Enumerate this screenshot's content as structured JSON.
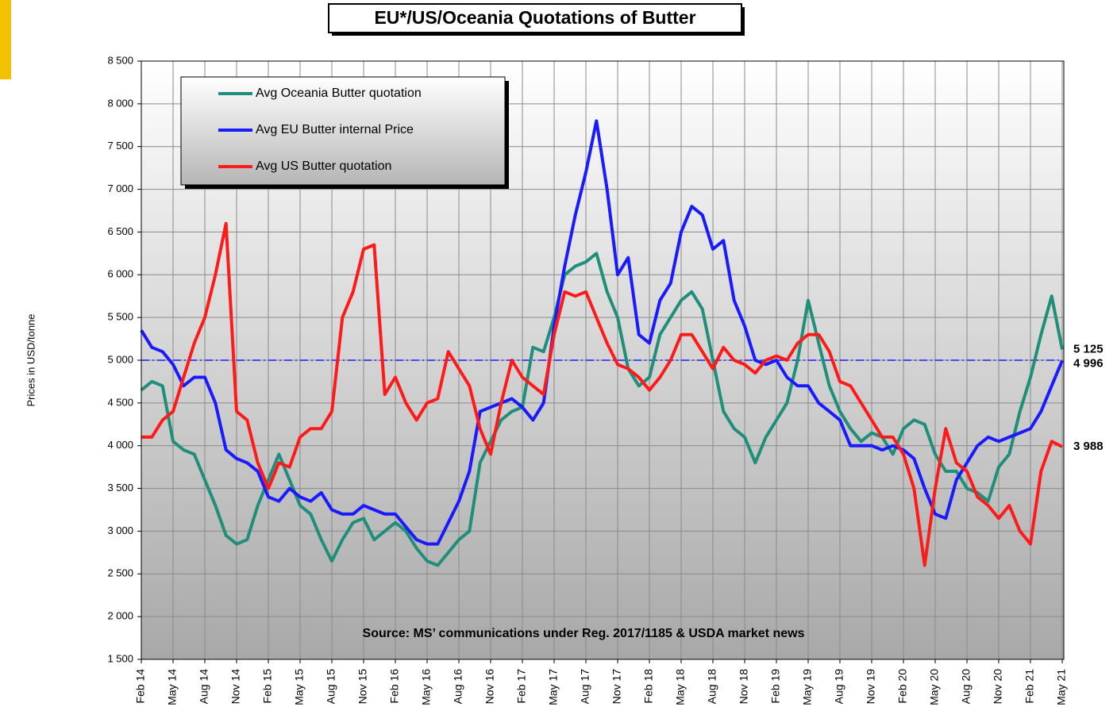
{
  "chart_data": {
    "type": "line",
    "title": "EU*/US/Oceania Quotations of Butter",
    "y_label": "Prices in USD/tonne",
    "annotation": "Source: MS’ communications under Reg. 2017/1185  & USDA market news",
    "reference_line": 5000,
    "grid": true,
    "legend": "upper left",
    "categories": [
      "Feb 14",
      null,
      null,
      "May 14",
      null,
      null,
      "Aug 14",
      null,
      null,
      "Nov 14",
      null,
      null,
      "Feb 15",
      null,
      null,
      "May 15",
      null,
      null,
      "Aug 15",
      null,
      null,
      "Nov 15",
      null,
      null,
      "Feb 16",
      null,
      null,
      "May 16",
      null,
      null,
      "Aug 16",
      null,
      null,
      "Nov 16",
      null,
      null,
      "Feb 17",
      null,
      null,
      "May 17",
      null,
      null,
      "Aug 17",
      null,
      null,
      "Nov 17",
      null,
      null,
      "Feb 18",
      null,
      null,
      "May 18",
      null,
      null,
      "Aug 18",
      null,
      null,
      "Nov 18",
      null,
      null,
      "Feb 19",
      null,
      null,
      "May 19",
      null,
      null,
      "Aug 19",
      null,
      null,
      "Nov 19",
      null,
      null,
      "Feb 20",
      null,
      null,
      "May 20",
      null,
      null,
      "Aug 20",
      null,
      null,
      "Nov 20",
      null,
      null,
      "Feb 21",
      null,
      null,
      "May 21"
    ],
    "ylim": [
      1500,
      8500
    ],
    "yticks": [
      {
        "value": 1500,
        "label": "1 500"
      },
      {
        "value": 2000,
        "label": "2 000"
      },
      {
        "value": 2500,
        "label": "2 500"
      },
      {
        "value": 3000,
        "label": "3 000"
      },
      {
        "value": 3500,
        "label": "3 500"
      },
      {
        "value": 4000,
        "label": "4 000"
      },
      {
        "value": 4500,
        "label": "4 500"
      },
      {
        "value": 5000,
        "label": "5 000"
      },
      {
        "value": 5500,
        "label": "5 500"
      },
      {
        "value": 6000,
        "label": "6 000"
      },
      {
        "value": 6500,
        "label": "6 500"
      },
      {
        "value": 7000,
        "label": "7 000"
      },
      {
        "value": 7500,
        "label": "7 500"
      },
      {
        "value": 8000,
        "label": "8 000"
      },
      {
        "value": 8500,
        "label": "8 500"
      }
    ],
    "series": [
      {
        "name": "Avg Oceania Butter quotation",
        "color": "#1f8f7a",
        "values": [
          4650,
          4750,
          4700,
          4050,
          3950,
          3900,
          3600,
          3300,
          2950,
          2850,
          2900,
          3300,
          3600,
          3900,
          3600,
          3300,
          3200,
          2900,
          2650,
          2900,
          3100,
          3150,
          2900,
          3000,
          3100,
          3000,
          2800,
          2650,
          2600,
          2750,
          2900,
          3000,
          3800,
          4050,
          4300,
          4400,
          4450,
          5150,
          5100,
          5500,
          6000,
          6100,
          6150,
          6250,
          5800,
          5500,
          4900,
          4700,
          4800,
          5300,
          5500,
          5700,
          5800,
          5600,
          5000,
          4400,
          4200,
          4100,
          3800,
          4100,
          4300,
          4500,
          5000,
          5700,
          5200,
          4700,
          4400,
          4200,
          4050,
          4150,
          4100,
          3900,
          4200,
          4300,
          4250,
          3900,
          3700,
          3700,
          3500,
          3450,
          3350,
          3750,
          3900,
          4400,
          4800,
          5300,
          5750,
          5125
        ],
        "value_labels": [
          null,
          null,
          null,
          null,
          null,
          null,
          null,
          null,
          null,
          null,
          null,
          null,
          null,
          null,
          null,
          null,
          null,
          null,
          null,
          null,
          null,
          null,
          null,
          null,
          null,
          null,
          null,
          null,
          null,
          null,
          null,
          null,
          null,
          null,
          null,
          null,
          null,
          null,
          null,
          null,
          null,
          null,
          null,
          null,
          null,
          null,
          null,
          null,
          null,
          null,
          null,
          null,
          null,
          null,
          null,
          null,
          null,
          null,
          null,
          null,
          null,
          null,
          null,
          null,
          null,
          null,
          null,
          null,
          null,
          null,
          null,
          null,
          null,
          null,
          null,
          null,
          null,
          null,
          null,
          null,
          null,
          null,
          null,
          null,
          null,
          null,
          null,
          "5 125"
        ]
      },
      {
        "name": "Avg EU Butter internal Price",
        "color": "#1a1aff",
        "values": [
          5350,
          5150,
          5100,
          4950,
          4700,
          4800,
          4800,
          4500,
          3950,
          3850,
          3800,
          3700,
          3400,
          3350,
          3500,
          3400,
          3350,
          3450,
          3250,
          3200,
          3200,
          3300,
          3250,
          3200,
          3200,
          3050,
          2900,
          2850,
          2850,
          3100,
          3350,
          3700,
          4400,
          4450,
          4500,
          4550,
          4450,
          4300,
          4500,
          5400,
          6100,
          6700,
          7200,
          7800,
          7000,
          6000,
          6200,
          5300,
          5200,
          5700,
          5900,
          6500,
          6800,
          6700,
          6300,
          6400,
          5700,
          5400,
          5000,
          4950,
          5000,
          4800,
          4700,
          4700,
          4500,
          4400,
          4300,
          4000,
          4000,
          4000,
          3950,
          4000,
          3950,
          3850,
          3500,
          3200,
          3150,
          3600,
          3800,
          4000,
          4100,
          4050,
          4100,
          4150,
          4200,
          4400,
          4700,
          4996
        ],
        "value_labels": [
          null,
          null,
          null,
          null,
          null,
          null,
          null,
          null,
          null,
          null,
          null,
          null,
          null,
          null,
          null,
          null,
          null,
          null,
          null,
          null,
          null,
          null,
          null,
          null,
          null,
          null,
          null,
          null,
          null,
          null,
          null,
          null,
          null,
          null,
          null,
          null,
          null,
          null,
          null,
          null,
          null,
          null,
          null,
          null,
          null,
          null,
          null,
          null,
          null,
          null,
          null,
          null,
          null,
          null,
          null,
          null,
          null,
          null,
          null,
          null,
          null,
          null,
          null,
          null,
          null,
          null,
          null,
          null,
          null,
          null,
          null,
          null,
          null,
          null,
          null,
          null,
          null,
          null,
          null,
          null,
          null,
          null,
          null,
          null,
          null,
          null,
          null,
          "4 996"
        ]
      },
      {
        "name": "Avg US Butter quotation",
        "color": "#ff1a1a",
        "values": [
          4100,
          4100,
          4300,
          4400,
          4800,
          5200,
          5500,
          6000,
          6600,
          4400,
          4300,
          3800,
          3500,
          3800,
          3750,
          4100,
          4200,
          4200,
          4400,
          5500,
          5800,
          6300,
          6350,
          4600,
          4800,
          4500,
          4300,
          4500,
          4550,
          5100,
          4900,
          4700,
          4200,
          3900,
          4500,
          5000,
          4800,
          4700,
          4600,
          5300,
          5800,
          5750,
          5800,
          5500,
          5200,
          4950,
          4900,
          4800,
          4650,
          4800,
          5000,
          5300,
          5300,
          5100,
          4900,
          5150,
          5000,
          4950,
          4850,
          5000,
          5050,
          5000,
          5200,
          5300,
          5300,
          5100,
          4750,
          4700,
          4500,
          4300,
          4100,
          4100,
          3900,
          3500,
          2600,
          3500,
          4200,
          3800,
          3700,
          3400,
          3300,
          3150,
          3300,
          3000,
          2850,
          3700,
          4050,
          3988
        ],
        "value_labels": [
          null,
          null,
          null,
          null,
          null,
          null,
          null,
          null,
          null,
          null,
          null,
          null,
          null,
          null,
          null,
          null,
          null,
          null,
          null,
          null,
          null,
          null,
          null,
          null,
          null,
          null,
          null,
          null,
          null,
          null,
          null,
          null,
          null,
          null,
          null,
          null,
          null,
          null,
          null,
          null,
          null,
          null,
          null,
          null,
          null,
          null,
          null,
          null,
          null,
          null,
          null,
          null,
          null,
          null,
          null,
          null,
          null,
          null,
          null,
          null,
          null,
          null,
          null,
          null,
          null,
          null,
          null,
          null,
          null,
          null,
          null,
          null,
          null,
          null,
          null,
          null,
          null,
          null,
          null,
          null,
          null,
          null,
          null,
          null,
          null,
          null,
          null,
          "3 988"
        ]
      }
    ]
  }
}
